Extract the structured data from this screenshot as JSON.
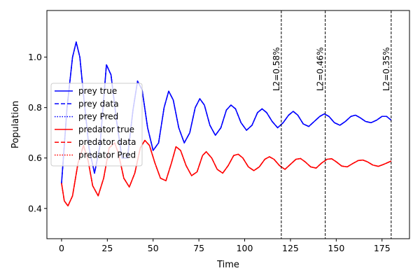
{
  "chart_data": {
    "type": "line",
    "xlabel": "Time",
    "ylabel": "Population",
    "xlim": [
      -8,
      190
    ],
    "ylim": [
      0.28,
      1.185
    ],
    "xticks": [
      0,
      25,
      50,
      75,
      100,
      125,
      150,
      175
    ],
    "yticks": [
      0.4,
      0.6,
      0.8,
      1.0
    ],
    "xtick_labels": [
      "0",
      "25",
      "50",
      "75",
      "100",
      "125",
      "150",
      "175"
    ],
    "ytick_labels": [
      "0.4",
      "0.6",
      "0.8",
      "1.0"
    ],
    "grid": false,
    "legend_placement": "center-left",
    "vlines": [
      {
        "x": 120,
        "label": "L2=0.58%"
      },
      {
        "x": 144,
        "label": "L2=0.46%"
      },
      {
        "x": 180,
        "label": "L2=0.35%"
      }
    ],
    "series": [
      {
        "name": "prey true",
        "color": "#0000ff",
        "style": "solid",
        "x": [
          0,
          3,
          6,
          8,
          10,
          12,
          15,
          18,
          21,
          24.5,
          27,
          30,
          33,
          36,
          39,
          41.5,
          44,
          47,
          50,
          53,
          56,
          58.5,
          61,
          64,
          67,
          70,
          73,
          75.5,
          78,
          81,
          84,
          87,
          90,
          92.5,
          95,
          98,
          101,
          104,
          107,
          109.5,
          112,
          115,
          118,
          121,
          124,
          126.5,
          129,
          132,
          135,
          138,
          141,
          143.5,
          146,
          149,
          152,
          155,
          158,
          160.5,
          163,
          166,
          169,
          172,
          175,
          177.5,
          180
        ],
        "values": [
          0.5,
          0.8,
          1.0,
          1.06,
          1.0,
          0.85,
          0.64,
          0.54,
          0.65,
          0.97,
          0.93,
          0.75,
          0.6,
          0.6,
          0.79,
          0.905,
          0.87,
          0.72,
          0.63,
          0.66,
          0.8,
          0.865,
          0.83,
          0.72,
          0.66,
          0.7,
          0.8,
          0.835,
          0.81,
          0.73,
          0.69,
          0.72,
          0.79,
          0.81,
          0.795,
          0.74,
          0.71,
          0.73,
          0.78,
          0.795,
          0.78,
          0.745,
          0.72,
          0.74,
          0.77,
          0.785,
          0.77,
          0.735,
          0.725,
          0.745,
          0.765,
          0.775,
          0.765,
          0.74,
          0.73,
          0.745,
          0.765,
          0.77,
          0.76,
          0.745,
          0.74,
          0.75,
          0.765,
          0.765,
          0.75
        ]
      },
      {
        "name": "prey data",
        "color": "#0000ff",
        "style": "dashed",
        "x": [
          0,
          3,
          6,
          8,
          10,
          12,
          15,
          18,
          21,
          24.5,
          27,
          30,
          33,
          36,
          39,
          41.5,
          44,
          47,
          50,
          53,
          56,
          58.5,
          61,
          64,
          67,
          70,
          73,
          75.5,
          78,
          81,
          84,
          87,
          90,
          92.5,
          95,
          98,
          101,
          104,
          107,
          109.5,
          112,
          115,
          118,
          121,
          124,
          126.5,
          129,
          132,
          135,
          138,
          141,
          143.5,
          146,
          149,
          152,
          155,
          158,
          160.5,
          163,
          166,
          169,
          172,
          175,
          177.5,
          180
        ],
        "values": [
          0.5,
          0.8,
          1.0,
          1.06,
          1.0,
          0.85,
          0.64,
          0.54,
          0.65,
          0.97,
          0.93,
          0.75,
          0.6,
          0.6,
          0.79,
          0.905,
          0.87,
          0.72,
          0.63,
          0.66,
          0.8,
          0.865,
          0.83,
          0.72,
          0.66,
          0.7,
          0.8,
          0.835,
          0.81,
          0.73,
          0.69,
          0.72,
          0.79,
          0.81,
          0.795,
          0.74,
          0.71,
          0.73,
          0.78,
          0.795,
          0.78,
          0.745,
          0.72,
          0.74,
          0.77,
          0.785,
          0.77,
          0.735,
          0.725,
          0.745,
          0.765,
          0.775,
          0.765,
          0.74,
          0.73,
          0.745,
          0.765,
          0.77,
          0.76,
          0.745,
          0.74,
          0.75,
          0.765,
          0.765,
          0.75
        ]
      },
      {
        "name": "prey Pred",
        "color": "#0000ff",
        "style": "dotted",
        "x": [
          0,
          3,
          6,
          8,
          10,
          12,
          15,
          18,
          21,
          24.5,
          27,
          30,
          33,
          36,
          39,
          41.5,
          44,
          47,
          50,
          53,
          56,
          58.5,
          61,
          64,
          67,
          70,
          73,
          75.5,
          78,
          81,
          84,
          87,
          90,
          92.5,
          95,
          98,
          101,
          104,
          107,
          109.5,
          112,
          115,
          118,
          121,
          124,
          126.5,
          129,
          132,
          135,
          138,
          141,
          143.5,
          146,
          149,
          152,
          155,
          158,
          160.5,
          163,
          166,
          169,
          172,
          175,
          177.5,
          180
        ],
        "values": [
          0.5,
          0.8,
          1.0,
          1.06,
          1.0,
          0.85,
          0.64,
          0.54,
          0.65,
          0.97,
          0.93,
          0.75,
          0.6,
          0.6,
          0.79,
          0.905,
          0.87,
          0.72,
          0.63,
          0.66,
          0.8,
          0.865,
          0.83,
          0.72,
          0.66,
          0.7,
          0.8,
          0.835,
          0.81,
          0.73,
          0.69,
          0.72,
          0.79,
          0.81,
          0.795,
          0.74,
          0.71,
          0.73,
          0.78,
          0.795,
          0.78,
          0.745,
          0.72,
          0.74,
          0.77,
          0.785,
          0.77,
          0.735,
          0.725,
          0.745,
          0.765,
          0.775,
          0.765,
          0.74,
          0.73,
          0.745,
          0.765,
          0.77,
          0.76,
          0.745,
          0.74,
          0.75,
          0.765,
          0.765,
          0.75
        ]
      },
      {
        "name": "predator true",
        "color": "#ff0000",
        "style": "solid",
        "x": [
          0,
          1.5,
          3.5,
          6,
          9,
          12,
          14.5,
          17,
          20,
          23,
          26,
          29,
          31,
          34,
          37,
          40,
          43,
          45.5,
          48,
          51,
          54,
          57,
          60,
          62.5,
          65,
          68,
          71,
          74,
          77,
          79,
          82,
          85,
          88,
          91,
          94,
          96.5,
          99,
          102,
          105,
          108,
          111,
          113.5,
          116,
          119,
          122,
          125,
          128,
          130.5,
          133,
          136,
          139,
          142,
          145,
          147.5,
          150,
          153,
          156,
          159,
          162,
          164.5,
          167,
          170,
          173,
          176,
          180
        ],
        "values": [
          0.5,
          0.43,
          0.41,
          0.45,
          0.58,
          0.65,
          0.59,
          0.49,
          0.45,
          0.52,
          0.64,
          0.66,
          0.62,
          0.52,
          0.485,
          0.54,
          0.64,
          0.67,
          0.65,
          0.58,
          0.52,
          0.51,
          0.58,
          0.645,
          0.63,
          0.57,
          0.53,
          0.545,
          0.61,
          0.625,
          0.6,
          0.555,
          0.54,
          0.57,
          0.61,
          0.615,
          0.6,
          0.565,
          0.55,
          0.565,
          0.595,
          0.605,
          0.595,
          0.57,
          0.555,
          0.575,
          0.595,
          0.598,
          0.585,
          0.565,
          0.56,
          0.58,
          0.595,
          0.597,
          0.585,
          0.568,
          0.565,
          0.578,
          0.59,
          0.592,
          0.585,
          0.572,
          0.567,
          0.575,
          0.588
        ]
      },
      {
        "name": "predator data",
        "color": "#ff0000",
        "style": "dashed",
        "x": [
          0,
          1.5,
          3.5,
          6,
          9,
          12,
          14.5,
          17,
          20,
          23,
          26,
          29,
          31,
          34,
          37,
          40,
          43,
          45.5,
          48,
          51,
          54,
          57,
          60,
          62.5,
          65,
          68,
          71,
          74,
          77,
          79,
          82,
          85,
          88,
          91,
          94,
          96.5,
          99,
          102,
          105,
          108,
          111,
          113.5,
          116,
          119,
          122,
          125,
          128,
          130.5,
          133,
          136,
          139,
          142,
          145,
          147.5,
          150,
          153,
          156,
          159,
          162,
          164.5,
          167,
          170,
          173,
          176,
          180
        ],
        "values": [
          0.5,
          0.43,
          0.41,
          0.45,
          0.58,
          0.65,
          0.59,
          0.49,
          0.45,
          0.52,
          0.64,
          0.66,
          0.62,
          0.52,
          0.485,
          0.54,
          0.64,
          0.67,
          0.65,
          0.58,
          0.52,
          0.51,
          0.58,
          0.645,
          0.63,
          0.57,
          0.53,
          0.545,
          0.61,
          0.625,
          0.6,
          0.555,
          0.54,
          0.57,
          0.61,
          0.615,
          0.6,
          0.565,
          0.55,
          0.565,
          0.595,
          0.605,
          0.595,
          0.57,
          0.555,
          0.575,
          0.595,
          0.598,
          0.585,
          0.565,
          0.56,
          0.58,
          0.595,
          0.597,
          0.585,
          0.568,
          0.565,
          0.578,
          0.59,
          0.592,
          0.585,
          0.572,
          0.567,
          0.575,
          0.588
        ]
      },
      {
        "name": "predator Pred",
        "color": "#ff0000",
        "style": "dotted",
        "x": [
          0,
          1.5,
          3.5,
          6,
          9,
          12,
          14.5,
          17,
          20,
          23,
          26,
          29,
          31,
          34,
          37,
          40,
          43,
          45.5,
          48,
          51,
          54,
          57,
          60,
          62.5,
          65,
          68,
          71,
          74,
          77,
          79,
          82,
          85,
          88,
          91,
          94,
          96.5,
          99,
          102,
          105,
          108,
          111,
          113.5,
          116,
          119,
          122,
          125,
          128,
          130.5,
          133,
          136,
          139,
          142,
          145,
          147.5,
          150,
          153,
          156,
          159,
          162,
          164.5,
          167,
          170,
          173,
          176,
          180
        ],
        "values": [
          0.5,
          0.43,
          0.41,
          0.45,
          0.58,
          0.65,
          0.59,
          0.49,
          0.45,
          0.52,
          0.64,
          0.66,
          0.62,
          0.52,
          0.485,
          0.54,
          0.64,
          0.67,
          0.65,
          0.58,
          0.52,
          0.51,
          0.58,
          0.645,
          0.63,
          0.57,
          0.53,
          0.545,
          0.61,
          0.625,
          0.6,
          0.555,
          0.54,
          0.57,
          0.61,
          0.615,
          0.6,
          0.565,
          0.55,
          0.565,
          0.595,
          0.605,
          0.595,
          0.57,
          0.555,
          0.575,
          0.595,
          0.598,
          0.585,
          0.565,
          0.56,
          0.58,
          0.595,
          0.597,
          0.585,
          0.568,
          0.565,
          0.578,
          0.59,
          0.592,
          0.585,
          0.572,
          0.567,
          0.575,
          0.588
        ]
      }
    ]
  }
}
